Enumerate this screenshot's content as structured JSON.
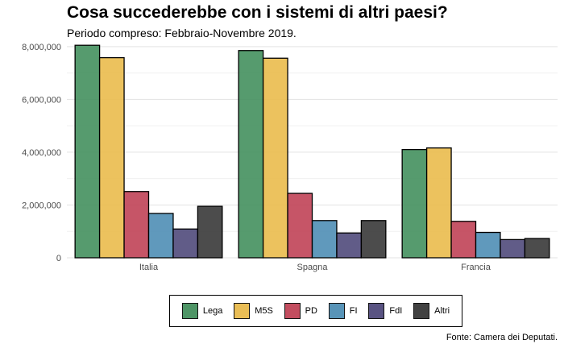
{
  "title": "Cosa succederebbe con i sistemi di altri paesi?",
  "subtitle": "Periodo compreso: Febbraio-Novembre 2019.",
  "caption": "Fonte: Camera dei Deputati.",
  "colors": {
    "Lega": "#3f8d5a",
    "M5S": "#e9b948",
    "PD": "#be3e52",
    "FI": "#4a8bb3",
    "FdI": "#4b4578",
    "Altri": "#333333"
  },
  "chart_data": {
    "type": "bar",
    "categories": [
      "Italia",
      "Spagna",
      "Francia"
    ],
    "series": [
      {
        "name": "Lega",
        "values": [
          8050000,
          7850000,
          4100000
        ]
      },
      {
        "name": "M5S",
        "values": [
          7580000,
          7560000,
          4160000
        ]
      },
      {
        "name": "PD",
        "values": [
          2510000,
          2440000,
          1380000
        ]
      },
      {
        "name": "FI",
        "values": [
          1680000,
          1410000,
          960000
        ]
      },
      {
        "name": "FdI",
        "values": [
          1090000,
          940000,
          690000
        ]
      },
      {
        "name": "Altri",
        "values": [
          1950000,
          1410000,
          730000
        ]
      }
    ],
    "yticks": [
      0,
      2000000,
      4000000,
      6000000,
      8000000
    ],
    "ytick_labels": [
      "0",
      "2,000,000",
      "4,000,000",
      "6,000,000",
      "8,000,000"
    ],
    "ylim": [
      0,
      8300000
    ],
    "grid": true,
    "legend_position": "bottom"
  }
}
